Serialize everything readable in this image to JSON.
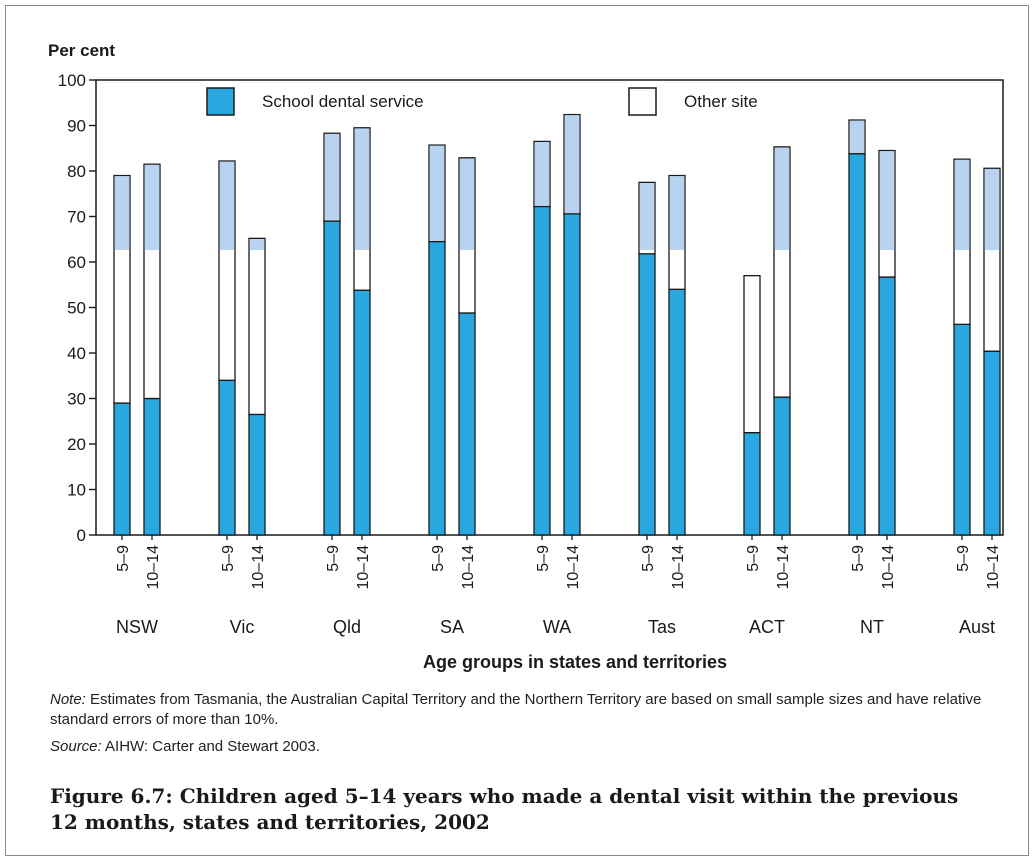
{
  "chart_data": {
    "type": "bar",
    "stacked": true,
    "ylabel": "Per cent",
    "xlabel": "Age groups in states and territories",
    "ylim": [
      0,
      100
    ],
    "yticks": [
      0,
      10,
      20,
      30,
      40,
      50,
      60,
      70,
      80,
      90,
      100
    ],
    "legend": {
      "position": "top",
      "entries": [
        "School dental service",
        "Other site"
      ]
    },
    "colors": {
      "school": "#29a8e0",
      "other": "#ffffff",
      "ghost": "#b7d3ef",
      "frame": "#1a1a1a"
    },
    "groups": [
      {
        "name": "NSW",
        "bars": [
          {
            "age": "5–9",
            "school": 29,
            "other": 50
          },
          {
            "age": "10–14",
            "school": 30,
            "other": 51.5
          }
        ]
      },
      {
        "name": "Vic",
        "bars": [
          {
            "age": "5–9",
            "school": 34,
            "other": 48.2
          },
          {
            "age": "10–14",
            "school": 26.5,
            "other": 38.7
          }
        ]
      },
      {
        "name": "Qld",
        "bars": [
          {
            "age": "5–9",
            "school": 69,
            "other": 19.3
          },
          {
            "age": "10–14",
            "school": 53.8,
            "other": 35.7
          }
        ]
      },
      {
        "name": "SA",
        "bars": [
          {
            "age": "5–9",
            "school": 64.5,
            "other": 21.2
          },
          {
            "age": "10–14",
            "school": 48.8,
            "other": 34.1
          }
        ]
      },
      {
        "name": "WA",
        "bars": [
          {
            "age": "5–9",
            "school": 72.2,
            "other": 14.3
          },
          {
            "age": "10–14",
            "school": 70.6,
            "other": 21.8
          }
        ]
      },
      {
        "name": "Tas",
        "bars": [
          {
            "age": "5–9",
            "school": 61.8,
            "other": 15.7
          },
          {
            "age": "10–14",
            "school": 54,
            "other": 25
          }
        ]
      },
      {
        "name": "ACT",
        "bars": [
          {
            "age": "5–9",
            "school": 22.5,
            "other": 34.5
          },
          {
            "age": "10–14",
            "school": 30.3,
            "other": 55
          }
        ]
      },
      {
        "name": "NT",
        "bars": [
          {
            "age": "5–9",
            "school": 83.8,
            "other": 7.4
          },
          {
            "age": "10–14",
            "school": 56.7,
            "other": 27.8
          }
        ]
      },
      {
        "name": "Aust",
        "bars": [
          {
            "age": "5–9",
            "school": 46.3,
            "other": 36.3
          },
          {
            "age": "10–14",
            "school": 40.4,
            "other": 40.2
          }
        ]
      }
    ]
  },
  "note": {
    "label": "Note:",
    "text": " Estimates from Tasmania, the Australian Capital Territory and the Northern Territory are based on small sample sizes and have relative standard errors of more than 10%."
  },
  "source": {
    "label": "Source:",
    "text": " AIHW: Carter and Stewart 2003."
  },
  "caption": "Figure 6.7: Children aged 5–14 years who made a dental visit within the previous 12 months, states and territories, 2002"
}
